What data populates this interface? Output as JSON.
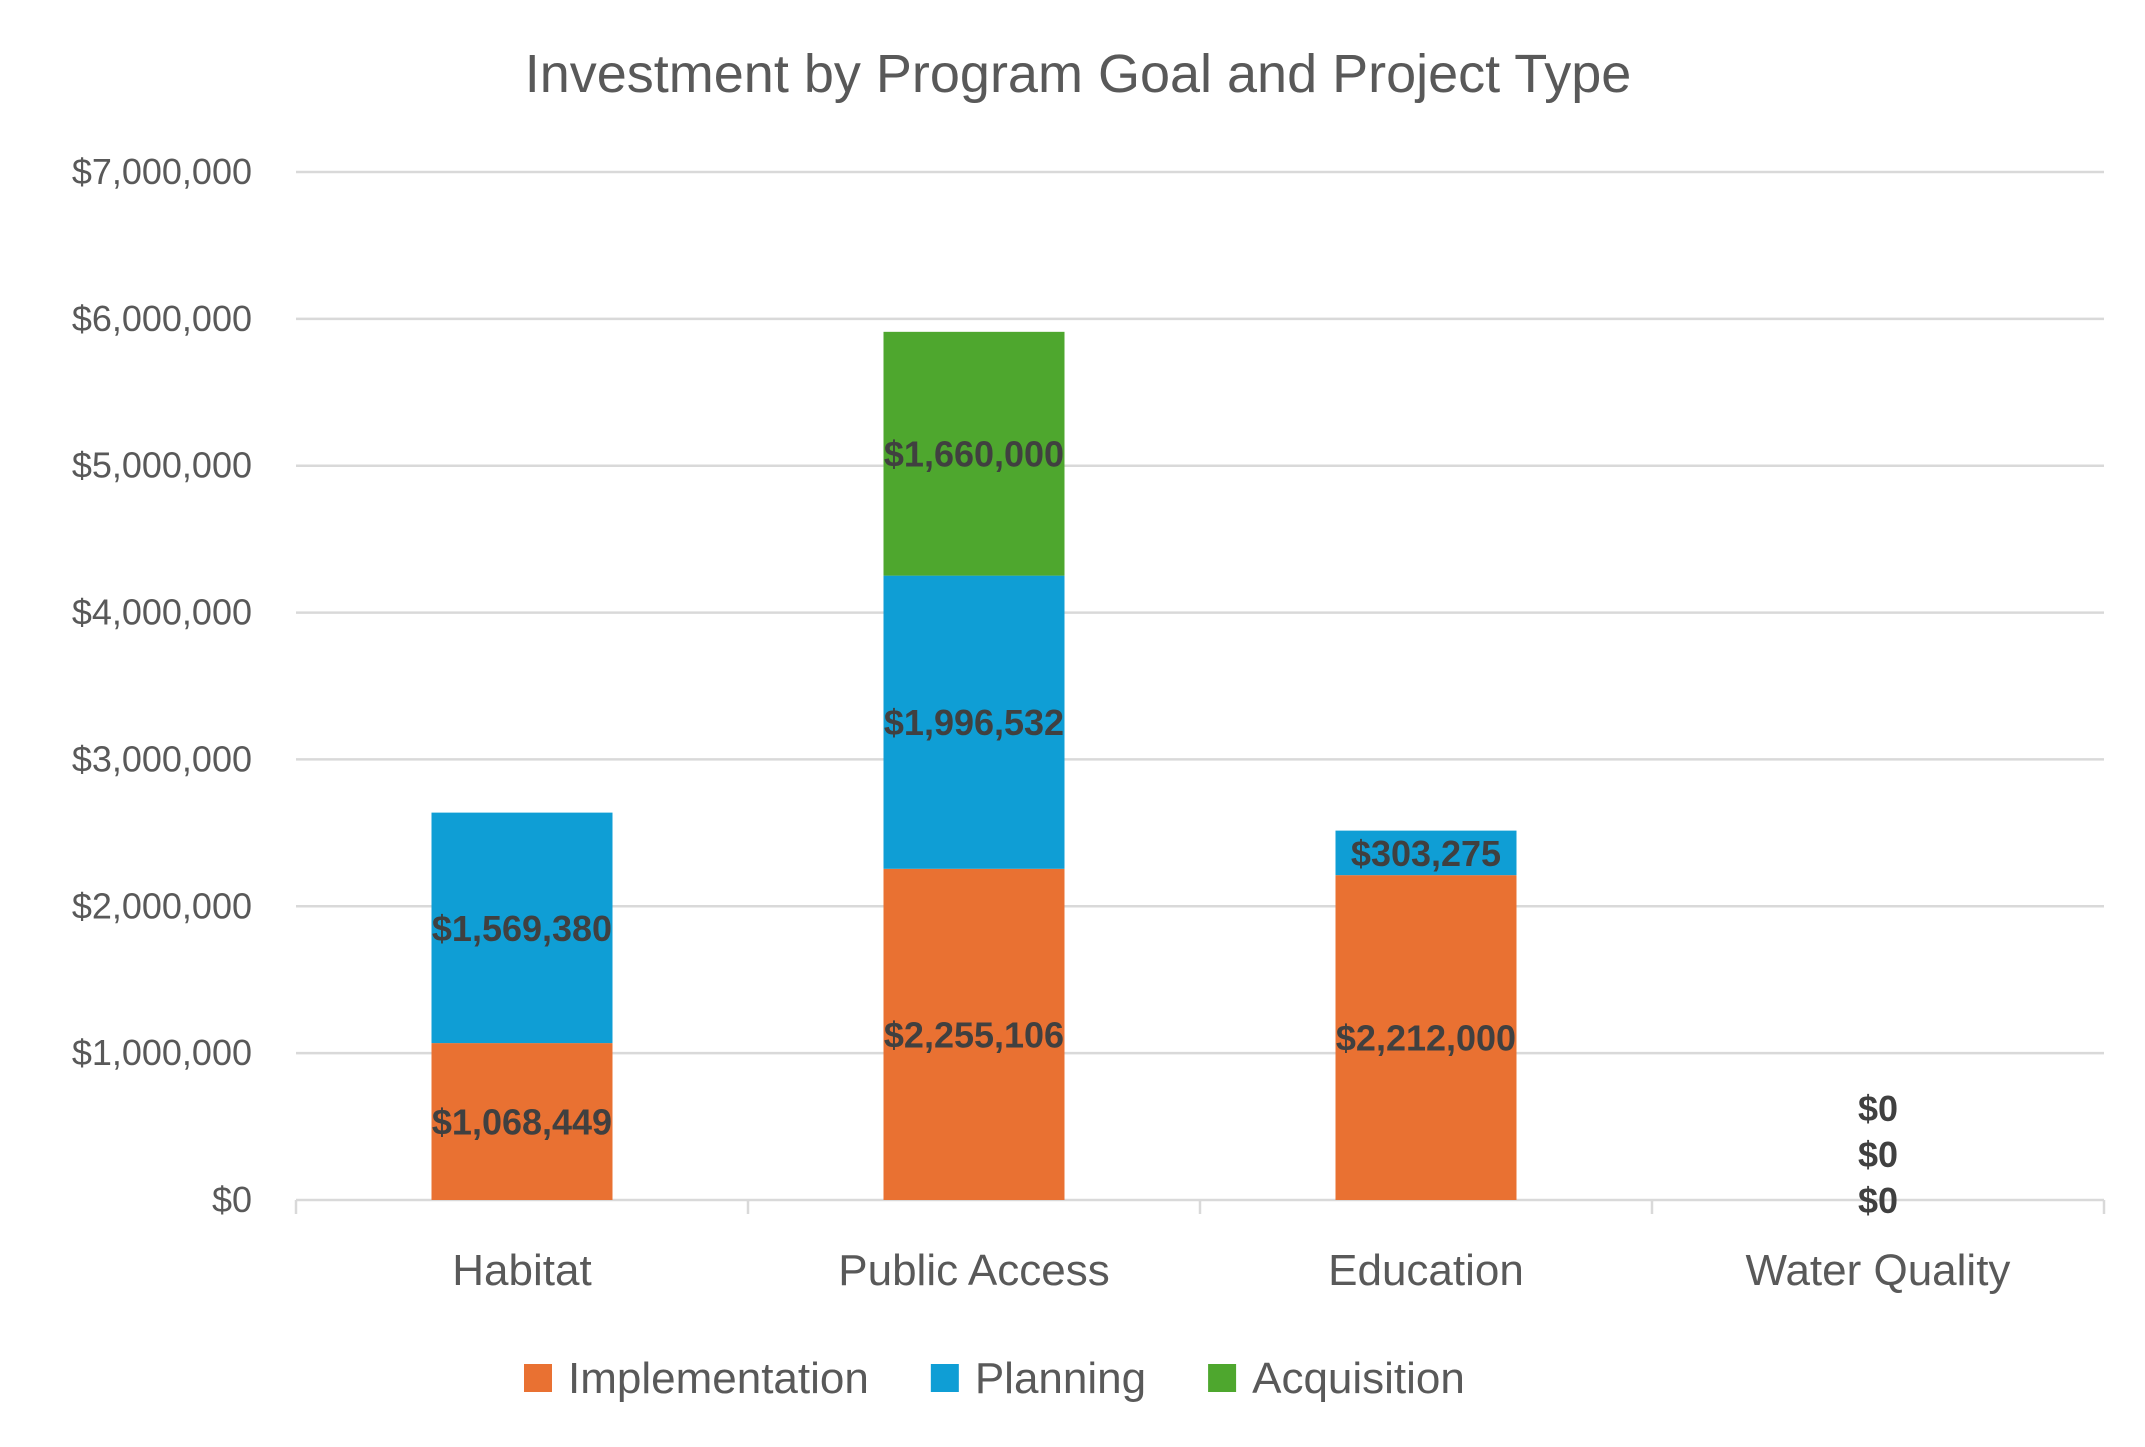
{
  "chart_data": {
    "type": "bar",
    "stacked": true,
    "title": "Investment by Program Goal and Project Type",
    "xlabel": "",
    "ylabel": "",
    "categories": [
      "Habitat",
      "Public Access",
      "Education",
      "Water Quality"
    ],
    "series": [
      {
        "name": "Implementation",
        "color": "#E97132",
        "values": [
          1068449,
          2255106,
          2212000,
          0
        ]
      },
      {
        "name": "Planning",
        "color": "#0F9ED5",
        "values": [
          1569380,
          1996532,
          303275,
          0
        ]
      },
      {
        "name": "Acquisition",
        "color": "#4EA72E",
        "values": [
          null,
          1660000,
          null,
          0
        ]
      }
    ],
    "ylim": [
      0,
      7000000
    ],
    "yticks": [
      0,
      1000000,
      2000000,
      3000000,
      4000000,
      5000000,
      6000000,
      7000000
    ],
    "ytick_labels": [
      "$0",
      "$1,000,000",
      "$2,000,000",
      "$3,000,000",
      "$4,000,000",
      "$5,000,000",
      "$6,000,000",
      "$7,000,000"
    ],
    "data_label_format": "currency",
    "grid": true,
    "legend_position": "bottom"
  }
}
